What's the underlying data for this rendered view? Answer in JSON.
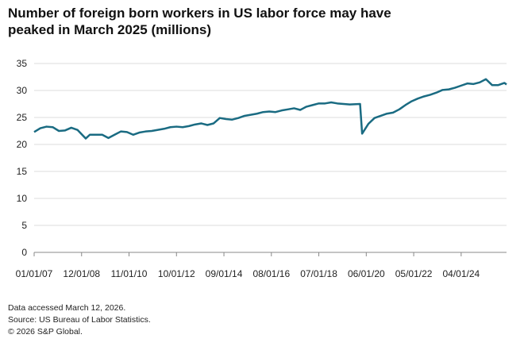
{
  "chart_data": {
    "type": "line",
    "title": "Number of foreign born workers in US labor force may have peaked in March 2025 (millions)",
    "notes": [
      "Data accessed March 12, 2026.",
      "Source: US Bureau of Labor Statistics.",
      "© 2026 S&P Global."
    ],
    "x": [
      "01/01/07",
      "04/01/07",
      "07/01/07",
      "10/01/07",
      "01/01/08",
      "04/01/08",
      "07/01/08",
      "10/01/08",
      "02/01/09",
      "04/01/09",
      "07/01/09",
      "10/01/09",
      "01/01/10",
      "04/01/10",
      "07/01/10",
      "10/01/10",
      "01/01/11",
      "04/01/11",
      "07/01/11",
      "10/01/11",
      "01/01/12",
      "04/01/12",
      "07/01/12",
      "10/01/12",
      "01/01/13",
      "04/01/13",
      "07/01/13",
      "10/01/13",
      "01/01/14",
      "04/01/14",
      "07/01/14",
      "10/01/14",
      "01/01/15",
      "04/01/15",
      "07/01/15",
      "10/01/15",
      "01/01/16",
      "04/01/16",
      "07/01/16",
      "10/01/16",
      "01/01/17",
      "04/01/17",
      "07/01/17",
      "10/01/17",
      "01/01/18",
      "04/01/18",
      "07/01/18",
      "10/01/18",
      "01/01/19",
      "04/01/19",
      "07/01/19",
      "10/01/19",
      "03/01/20",
      "04/01/20",
      "07/01/20",
      "10/01/20",
      "01/01/21",
      "04/01/21",
      "07/01/21",
      "10/01/21",
      "01/01/22",
      "04/01/22",
      "07/01/22",
      "10/01/22",
      "01/01/23",
      "04/01/23",
      "07/01/23",
      "10/01/23",
      "01/01/24",
      "04/01/24",
      "07/01/24",
      "10/01/24",
      "01/01/25",
      "04/01/25",
      "07/01/25",
      "10/01/25",
      "01/01/26",
      "02/01/26"
    ],
    "series": [
      {
        "name": "Foreign born workers",
        "color": "#1a6b82",
        "values": [
          22.3,
          23.0,
          23.3,
          23.2,
          22.5,
          22.6,
          23.1,
          22.7,
          21.1,
          21.8,
          21.8,
          21.8,
          21.2,
          21.8,
          22.4,
          22.3,
          21.8,
          22.2,
          22.4,
          22.5,
          22.7,
          22.9,
          23.2,
          23.3,
          23.2,
          23.4,
          23.7,
          23.9,
          23.6,
          23.9,
          24.9,
          24.7,
          24.6,
          24.9,
          25.3,
          25.5,
          25.7,
          26.0,
          26.1,
          26.0,
          26.3,
          26.5,
          26.7,
          26.4,
          27.0,
          27.3,
          27.6,
          27.6,
          27.8,
          27.6,
          27.5,
          27.4,
          27.5,
          22.0,
          23.8,
          24.9,
          25.3,
          25.7,
          25.9,
          26.5,
          27.3,
          28.0,
          28.5,
          28.9,
          29.2,
          29.6,
          30.1,
          30.2,
          30.5,
          30.9,
          31.3,
          31.2,
          31.5,
          32.1,
          31.0,
          31.0,
          31.4,
          31.1
        ]
      }
    ],
    "xlim": [
      "01/01/07",
      "02/01/26"
    ],
    "xticks": [
      "01/01/07",
      "12/01/08",
      "11/01/10",
      "10/01/12",
      "09/01/14",
      "08/01/16",
      "07/01/18",
      "06/01/20",
      "05/01/22",
      "04/01/24"
    ],
    "ylim": [
      0,
      35
    ],
    "yticks": [
      0,
      5,
      10,
      15,
      20,
      25,
      30,
      35
    ],
    "grid": true
  }
}
